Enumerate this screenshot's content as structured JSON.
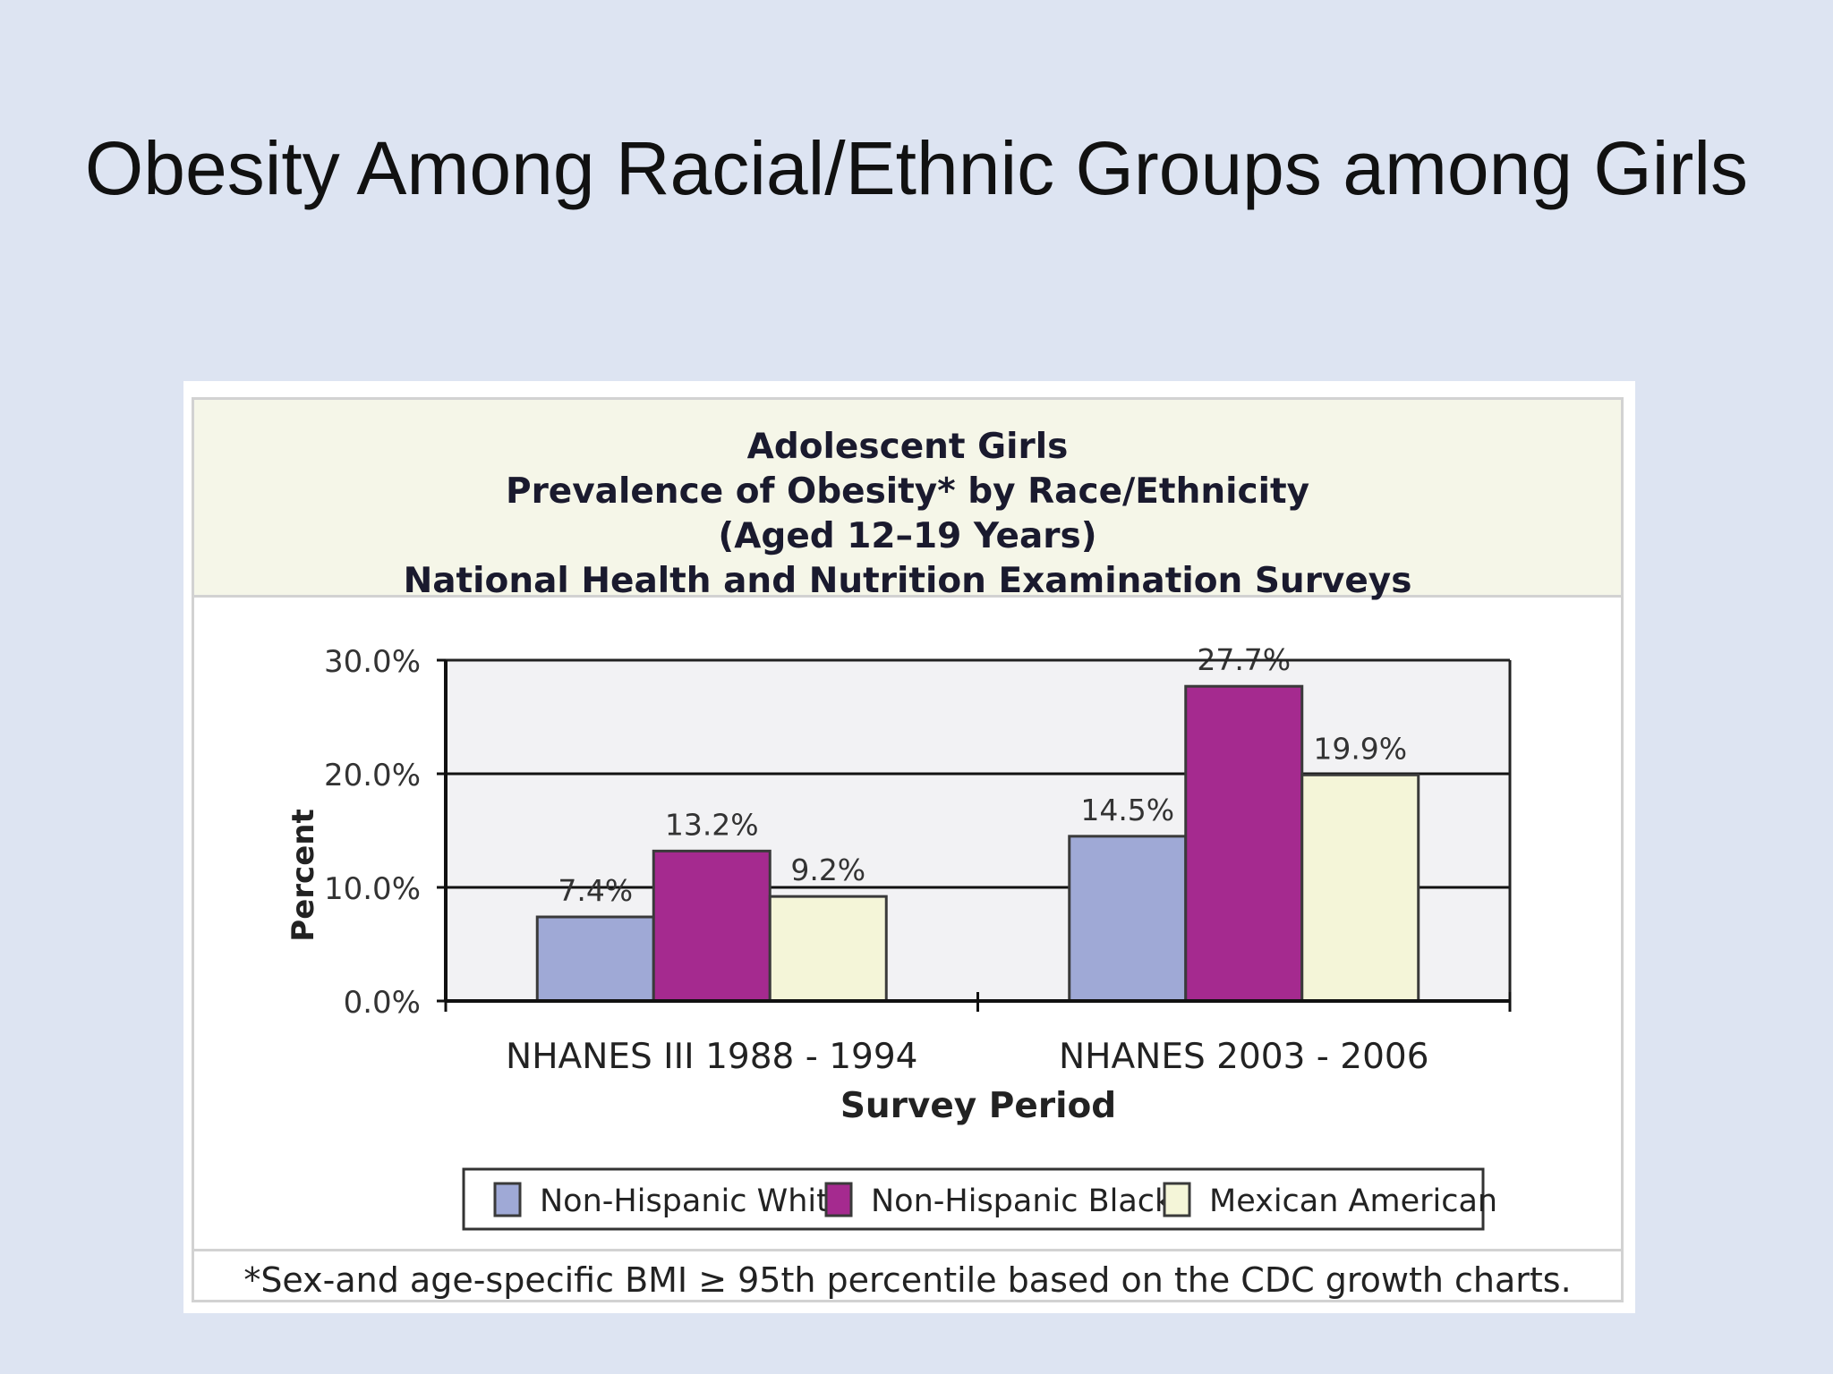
{
  "slide": {
    "title": "Obesity Among Racial/Ethnic Groups among Girls"
  },
  "chart_header": {
    "line1": "Adolescent Girls",
    "line2": "Prevalence of Obesity* by Race/Ethnicity",
    "line3": "(Aged 12–19 Years)",
    "line4": "National Health and Nutrition Examination Surveys"
  },
  "footnote": "*Sex-and age-specific BMI ≥ 95th percentile based on the CDC growth charts.",
  "chart_data": {
    "type": "bar",
    "title": "Adolescent Girls Prevalence of Obesity* by Race/Ethnicity (Aged 12–19 Years) National Health and Nutrition Examination Surveys",
    "categories": [
      "NHANES III 1988 - 1994",
      "NHANES 2003 - 2006"
    ],
    "series": [
      {
        "name": "Non-Hispanic White",
        "values": [
          7.4,
          14.5
        ],
        "labels": [
          "7.4%",
          "14.5%"
        ],
        "color": "#9fa9d6"
      },
      {
        "name": "Non-Hispanic Black",
        "values": [
          13.2,
          27.7
        ],
        "labels": [
          "13.2%",
          "27.7%"
        ],
        "color": "#a52a8f"
      },
      {
        "name": "Mexican American",
        "values": [
          9.2,
          19.9
        ],
        "labels": [
          "9.2%",
          "19.9%"
        ],
        "color": "#f4f5d8"
      }
    ],
    "xlabel": "Survey Period",
    "ylabel": "Percent",
    "ylim": [
      0,
      30
    ],
    "yticks": [
      0,
      10,
      20,
      30
    ],
    "ytick_labels": [
      "0.0%",
      "10.0%",
      "20.0%",
      "30.0%"
    ],
    "grid": true,
    "legend_position": "bottom",
    "plot_background": "#f2f2f4"
  }
}
